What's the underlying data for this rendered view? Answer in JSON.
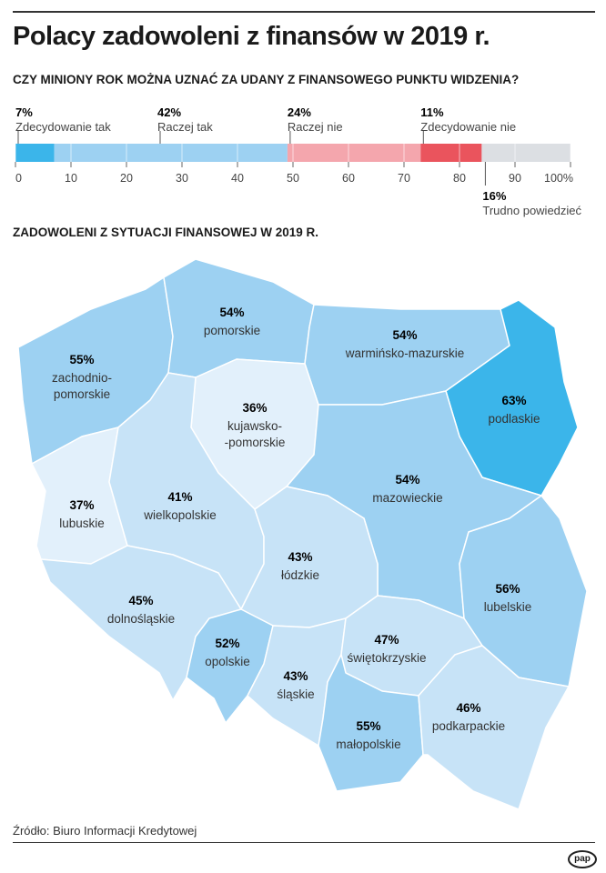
{
  "title": "Polacy zadowoleni z finansów w 2019 r.",
  "question": "CZY MINIONY ROK MOŻNA UZNAĆ ZA UDANY Z FINANSOWEGO PUNKTU WIDZENIA?",
  "map_title": "ZADOWOLENI Z SYTUACJI FINANSOWEJ W 2019 R.",
  "source": "Źródło: Biuro Informacji Kredytowej",
  "logo": "pap",
  "chart_data": [
    {
      "type": "bar",
      "orientation": "horizontal-stacked",
      "xlim": [
        0,
        100
      ],
      "ticks": [
        "0",
        "10",
        "20",
        "30",
        "40",
        "50",
        "60",
        "70",
        "80",
        "90",
        "100%"
      ],
      "series": [
        {
          "name": "Zdecydowanie tak",
          "value": 7,
          "label": "7%",
          "color": "#3bb5ea"
        },
        {
          "name": "Raczej tak",
          "value": 42,
          "label": "42%",
          "color": "#9dd1f2"
        },
        {
          "name": "Raczej nie",
          "value": 24,
          "label": "24%",
          "color": "#f4a6ad"
        },
        {
          "name": "Zdecydowanie nie",
          "value": 11,
          "label": "11%",
          "color": "#ea545d"
        },
        {
          "name": "Trudno powiedzieć",
          "value": 16,
          "label": "16%",
          "color": "#dcdfe3"
        }
      ]
    },
    {
      "type": "choropleth",
      "regions": [
        {
          "name": "zachodnio-\npomorskie",
          "value": 55,
          "label": "55%",
          "color": "#9dd1f2"
        },
        {
          "name": "pomorskie",
          "value": 54,
          "label": "54%",
          "color": "#9dd1f2"
        },
        {
          "name": "warmińsko-mazurskie",
          "value": 54,
          "label": "54%",
          "color": "#9dd1f2"
        },
        {
          "name": "podlaskie",
          "value": 63,
          "label": "63%",
          "color": "#3bb5ea"
        },
        {
          "name": "kujawsko-\n-pomorskie",
          "value": 36,
          "label": "36%",
          "color": "#e2f0fb"
        },
        {
          "name": "lubuskie",
          "value": 37,
          "label": "37%",
          "color": "#e2f0fb"
        },
        {
          "name": "wielkopolskie",
          "value": 41,
          "label": "41%",
          "color": "#c7e3f7"
        },
        {
          "name": "mazowieckie",
          "value": 54,
          "label": "54%",
          "color": "#9dd1f2"
        },
        {
          "name": "łódzkie",
          "value": 43,
          "label": "43%",
          "color": "#c7e3f7"
        },
        {
          "name": "lubelskie",
          "value": 56,
          "label": "56%",
          "color": "#9dd1f2"
        },
        {
          "name": "dolnośląskie",
          "value": 45,
          "label": "45%",
          "color": "#c7e3f7"
        },
        {
          "name": "opolskie",
          "value": 52,
          "label": "52%",
          "color": "#9dd1f2"
        },
        {
          "name": "śląskie",
          "value": 43,
          "label": "43%",
          "color": "#c7e3f7"
        },
        {
          "name": "świętokrzyskie",
          "value": 47,
          "label": "47%",
          "color": "#c7e3f7"
        },
        {
          "name": "małopolskie",
          "value": 55,
          "label": "55%",
          "color": "#9dd1f2"
        },
        {
          "name": "podkarpackie",
          "value": 46,
          "label": "46%",
          "color": "#c7e3f7"
        }
      ]
    }
  ]
}
